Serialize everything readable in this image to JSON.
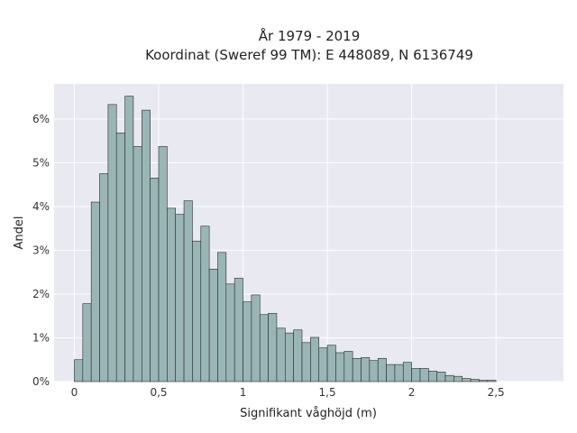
{
  "chart_data": {
    "type": "bar",
    "title": "År 1979 - 2019",
    "subtitle": "Koordinat (Sweref 99 TM): E 448089, N 6136749",
    "xlabel": "Signifikant våghöjd (m)",
    "ylabel": "Andel",
    "xlim": [
      -0.12,
      2.9
    ],
    "ylim": [
      0,
      0.068
    ],
    "bin_width": 0.05,
    "bin_start": 0.0,
    "x_ticks": [
      {
        "value": 0,
        "label": "0"
      },
      {
        "value": 0.5,
        "label": "0,5"
      },
      {
        "value": 1,
        "label": "1"
      },
      {
        "value": 1.5,
        "label": "1,5"
      },
      {
        "value": 2,
        "label": "2"
      },
      {
        "value": 2.5,
        "label": "2,5"
      }
    ],
    "y_ticks": [
      {
        "value": 0,
        "label": "0%"
      },
      {
        "value": 0.01,
        "label": "1%"
      },
      {
        "value": 0.02,
        "label": "2%"
      },
      {
        "value": 0.03,
        "label": "3%"
      },
      {
        "value": 0.04,
        "label": "4%"
      },
      {
        "value": 0.05,
        "label": "5%"
      },
      {
        "value": 0.06,
        "label": "6%"
      }
    ],
    "values": [
      0.005,
      0.0178,
      0.041,
      0.0475,
      0.0633,
      0.0568,
      0.0652,
      0.0537,
      0.062,
      0.0465,
      0.0537,
      0.0396,
      0.0382,
      0.0413,
      0.0321,
      0.0355,
      0.0257,
      0.0295,
      0.0223,
      0.0236,
      0.0182,
      0.0198,
      0.0153,
      0.0156,
      0.0122,
      0.0111,
      0.0118,
      0.0089,
      0.0101,
      0.0077,
      0.0083,
      0.0066,
      0.0069,
      0.0053,
      0.0055,
      0.0048,
      0.0053,
      0.0039,
      0.0039,
      0.0044,
      0.003,
      0.003,
      0.0024,
      0.0022,
      0.0014,
      0.0012,
      0.0007,
      0.0005,
      0.0003,
      0.0003
    ],
    "grid": true,
    "colors": {
      "bar": "#9ab5b5",
      "edge": "#2b2b2b",
      "plot_bg": "#e9e9f2",
      "grid": "#ffffff"
    }
  }
}
